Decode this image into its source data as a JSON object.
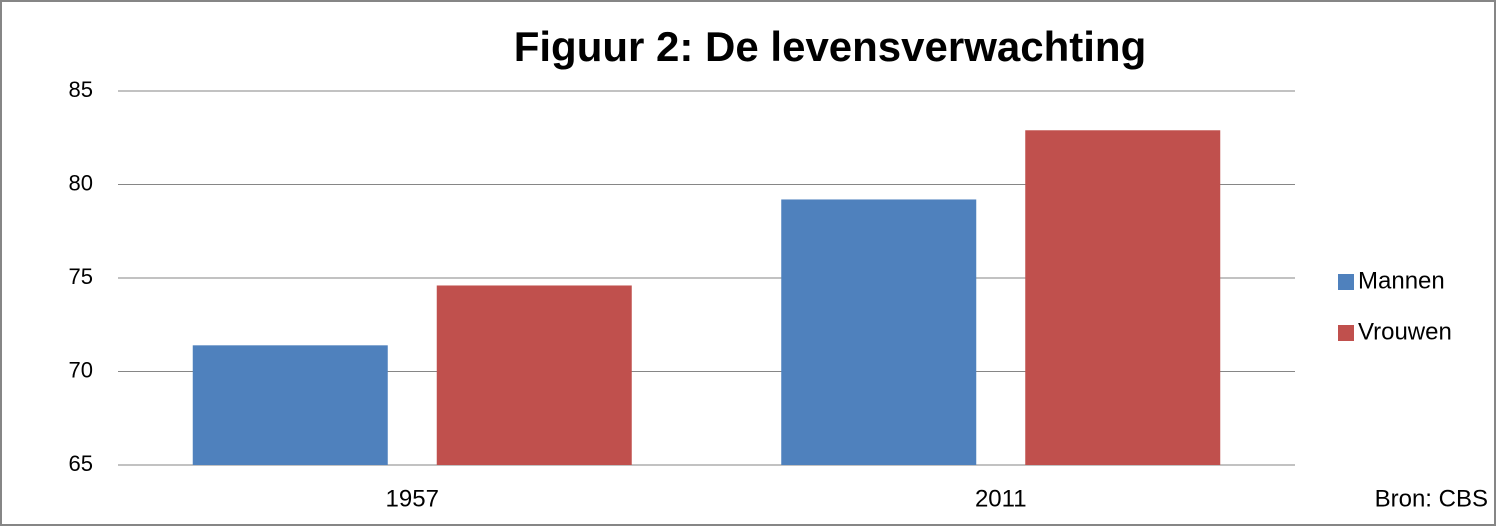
{
  "chart_data": {
    "type": "bar",
    "title": "Figuur 2: De levensverwachting",
    "categories": [
      "1957",
      "2011"
    ],
    "series": [
      {
        "name": "Mannen",
        "color": "#4f81bd",
        "values": [
          71.4,
          79.2
        ]
      },
      {
        "name": "Vrouwen",
        "color": "#c0504d",
        "values": [
          74.6,
          82.9
        ]
      }
    ],
    "ylim": [
      65,
      85
    ],
    "yticks": [
      65,
      70,
      75,
      80,
      85
    ],
    "grid": true,
    "legend": "right",
    "annotation": "Bron: CBS"
  }
}
